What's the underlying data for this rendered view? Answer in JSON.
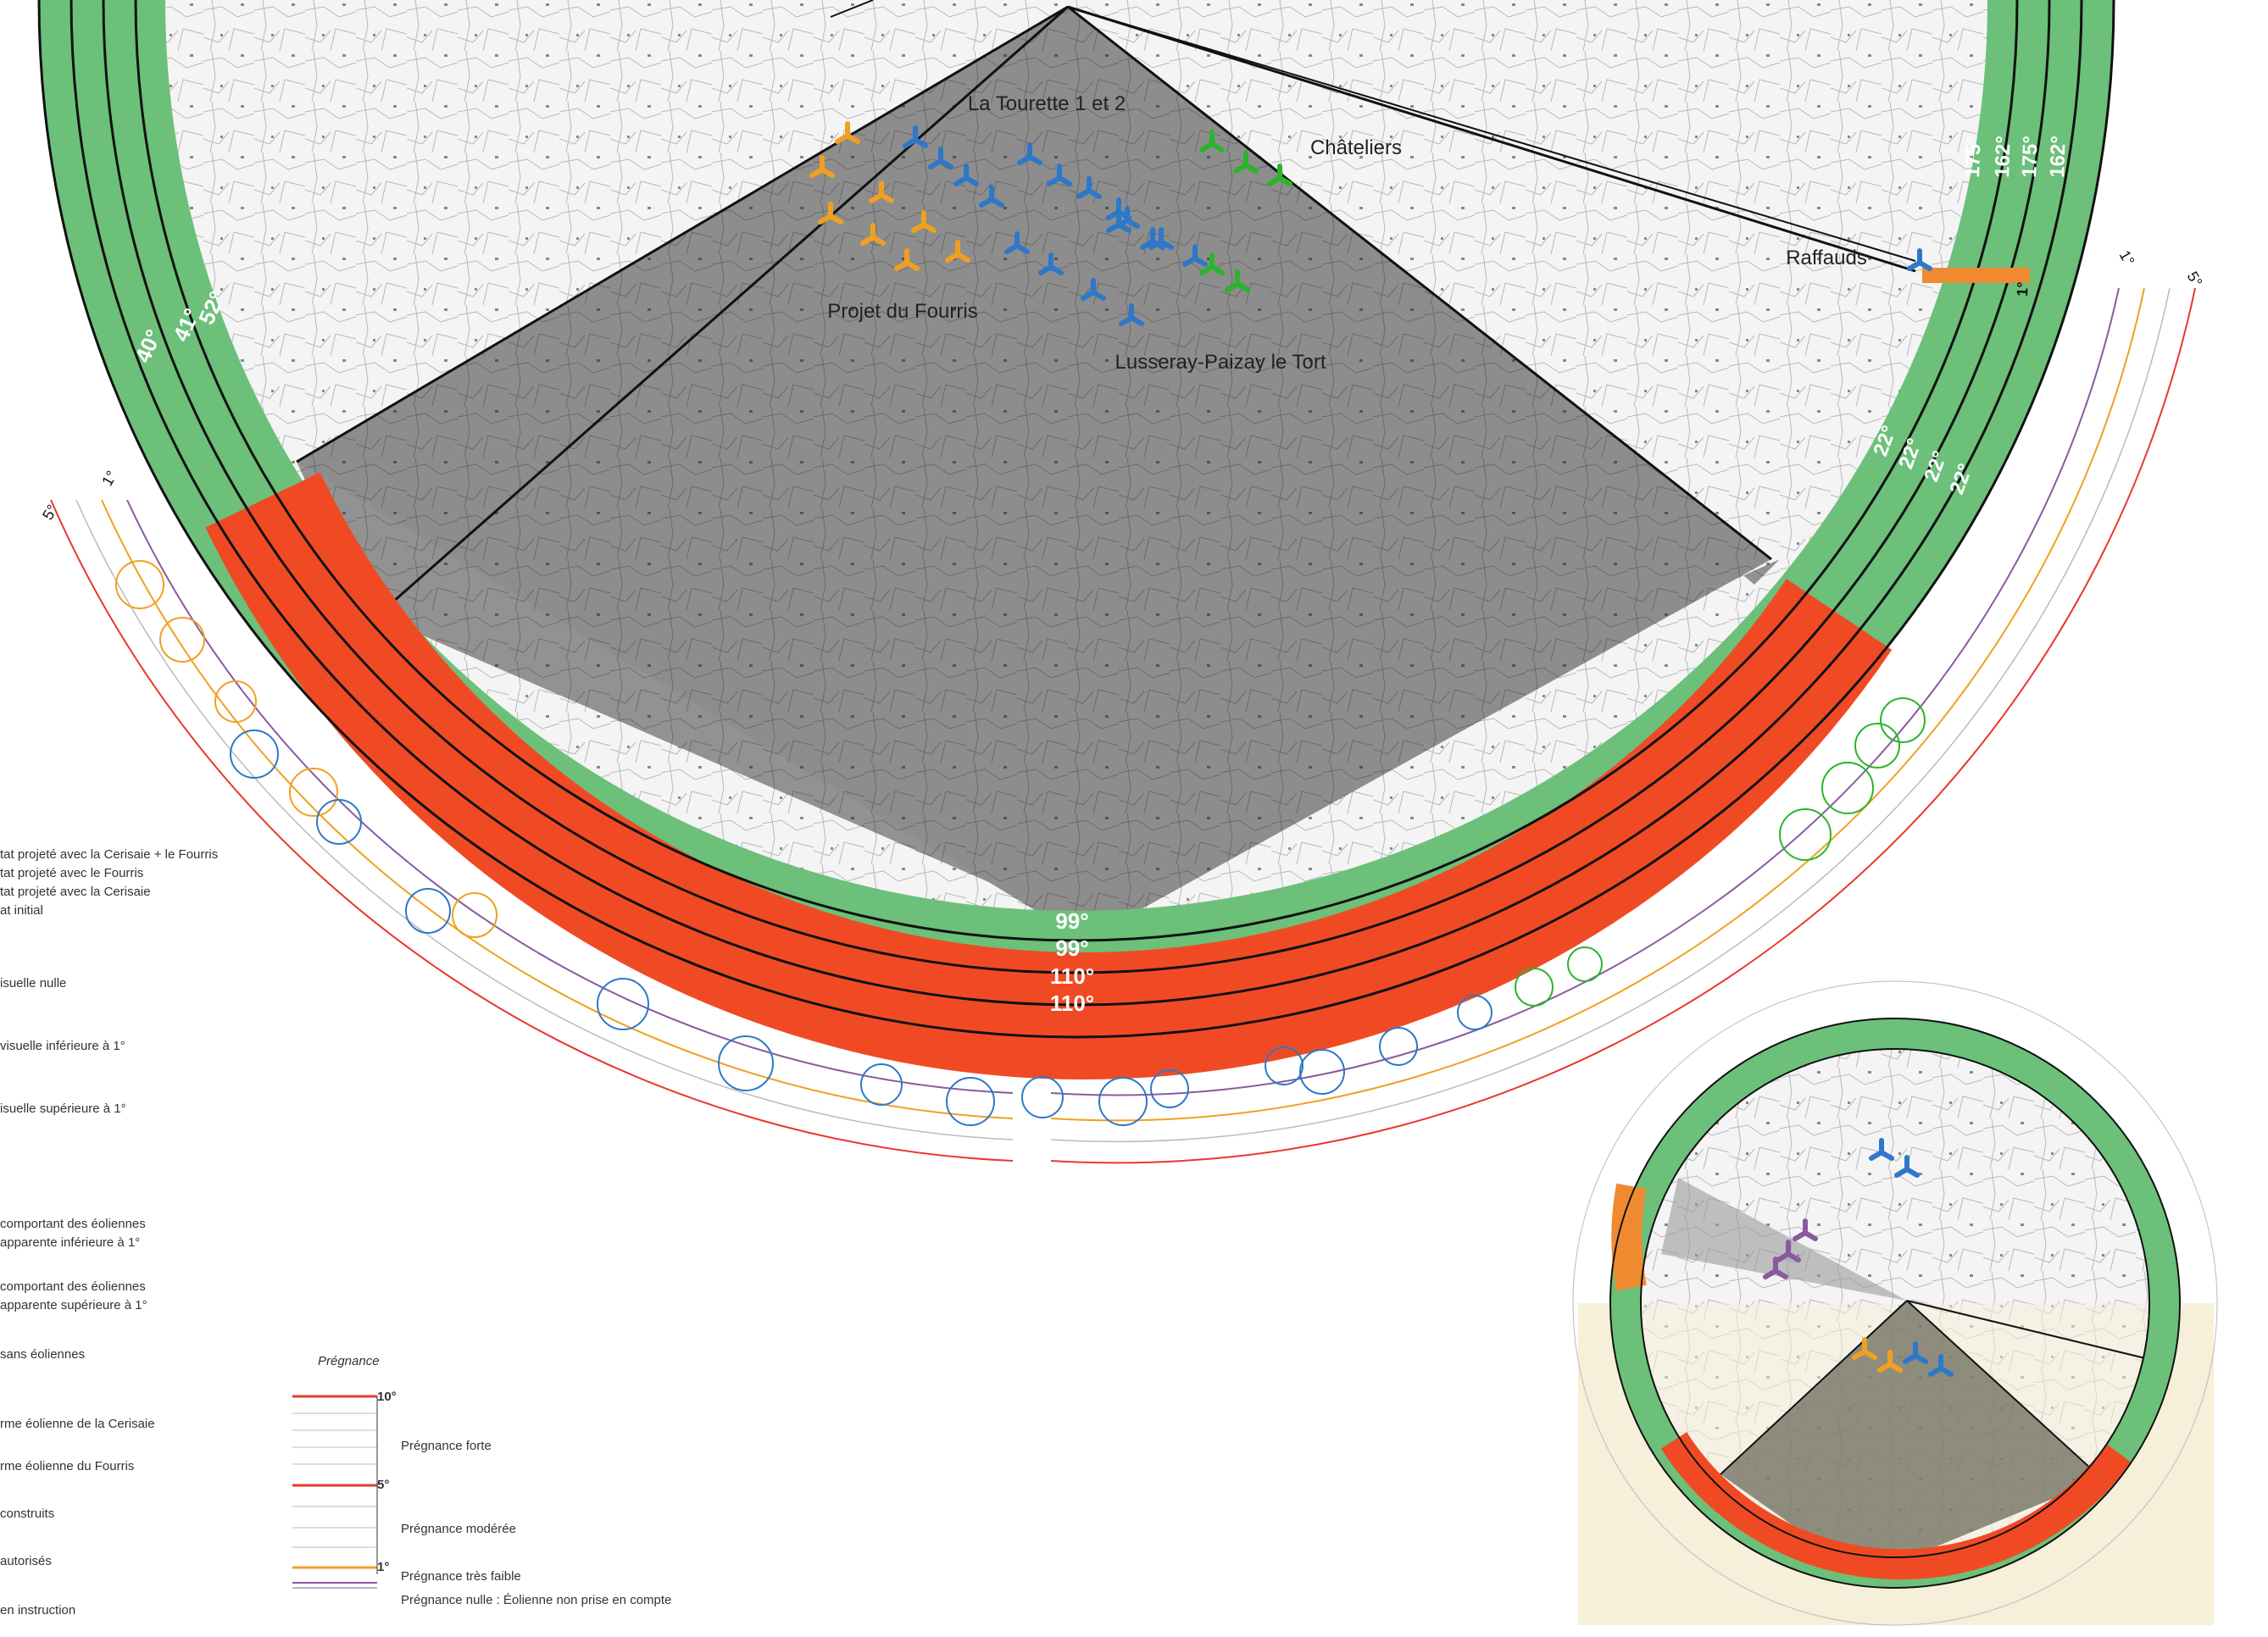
{
  "colors": {
    "green_band": "#6cc07a",
    "red_band": "#f04a24",
    "orange_turbine": "#f0a020",
    "blue_turbine": "#2d78c8",
    "green_turbine": "#2ab52a",
    "map_grey": "#8d8d8d",
    "inset_beige": "#f6efd9",
    "line_red": "#e8382e",
    "line_orange": "#f0a020",
    "line_purple": "#8a5aa0"
  },
  "map_labels": {
    "la_tourette": "La Tourette 1 et 2",
    "chateliers": "Châteliers",
    "projet_fourris": "Projet du Fourris",
    "lusseray": "Lusseray-Paizay le Tort",
    "raffauds": "Raffauds"
  },
  "left_band_values": [
    "52°",
    "41°",
    "40°"
  ],
  "right_top_values": [
    "175°",
    "162°",
    "175°",
    "162°"
  ],
  "right_small_value": "1°",
  "right_low_values": [
    "22°",
    "22°",
    "22°",
    "22°"
  ],
  "bottom_values": [
    "99°",
    "99°",
    "110°",
    "110°"
  ],
  "scale_marks": {
    "left_5": "5°",
    "left_1": "1°",
    "right_1": "1°",
    "right_5": "5°"
  },
  "legend": {
    "states": [
      "tat projeté avec la Cerisaie + le Fourris",
      "tat projeté avec le Fourris",
      "tat projeté avec la Cerisaie",
      "at initial"
    ],
    "visibility": [
      "isuelle nulle",
      "visuelle inférieure à 1°",
      "isuelle supérieure à 1°"
    ],
    "sectors": [
      [
        "comportant des éoliennes",
        "apparente inférieure à 1°"
      ],
      [
        "comportant des éoliennes",
        "apparente supérieure à 1°"
      ],
      [
        "sans éoliennes"
      ]
    ],
    "turbines": [
      "rme éolienne de la Cerisaie",
      "rme éolienne du Fourris",
      "construits",
      "autorisés",
      "en instruction"
    ]
  },
  "pregnance": {
    "title": "Prégnance",
    "mark_10": "10°",
    "mark_5": "5°",
    "mark_1": "1°",
    "forte": "Prégnance forte",
    "moderee": "Prégnance modérée",
    "tres_faible": "Prégnance très faible",
    "nulle": "Prégnance nulle : Éolienne non prise en compte"
  }
}
